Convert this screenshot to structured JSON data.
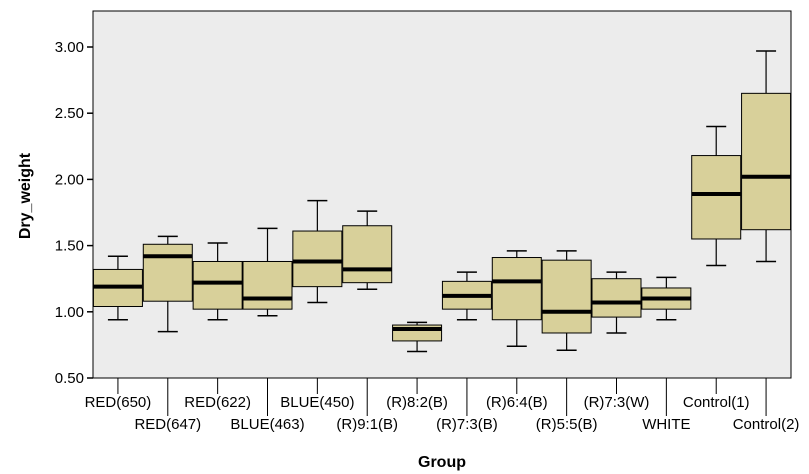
{
  "chart_data": {
    "type": "boxplot",
    "xlabel": "Group",
    "ylabel": "Dry_weight",
    "ylim": [
      0.5,
      3.25
    ],
    "yticks": [
      "0.50",
      "1.00",
      "1.50",
      "2.00",
      "2.50",
      "3.00"
    ],
    "ytick_values": [
      0.5,
      1.0,
      1.5,
      2.0,
      2.5,
      3.0
    ],
    "categories": [
      "RED(650)",
      "RED(647)",
      "RED(622)",
      "BLUE(463)",
      "BLUE(450)",
      "(R)9:1(B)",
      "(R)8:2(B)",
      "(R)7:3(B)",
      "(R)6:4(B)",
      "(R)5:5(B)",
      "(R)7:3(W)",
      "WHITE",
      "Control(1)",
      "Control(2)"
    ],
    "boxes": [
      {
        "min": 0.94,
        "q1": 1.04,
        "median": 1.19,
        "q3": 1.32,
        "max": 1.42
      },
      {
        "min": 0.85,
        "q1": 1.08,
        "median": 1.42,
        "q3": 1.51,
        "max": 1.57
      },
      {
        "min": 0.94,
        "q1": 1.02,
        "median": 1.22,
        "q3": 1.38,
        "max": 1.52
      },
      {
        "min": 0.97,
        "q1": 1.02,
        "median": 1.1,
        "q3": 1.38,
        "max": 1.63
      },
      {
        "min": 1.07,
        "q1": 1.19,
        "median": 1.38,
        "q3": 1.61,
        "max": 1.84
      },
      {
        "min": 1.17,
        "q1": 1.22,
        "median": 1.32,
        "q3": 1.65,
        "max": 1.76
      },
      {
        "min": 0.7,
        "q1": 0.78,
        "median": 0.87,
        "q3": 0.9,
        "max": 0.92
      },
      {
        "min": 0.94,
        "q1": 1.02,
        "median": 1.12,
        "q3": 1.23,
        "max": 1.3
      },
      {
        "min": 0.74,
        "q1": 0.94,
        "median": 1.23,
        "q3": 1.41,
        "max": 1.46
      },
      {
        "min": 0.71,
        "q1": 0.84,
        "median": 1.0,
        "q3": 1.39,
        "max": 1.46
      },
      {
        "min": 0.84,
        "q1": 0.96,
        "median": 1.07,
        "q3": 1.25,
        "max": 1.3
      },
      {
        "min": 0.94,
        "q1": 1.02,
        "median": 1.1,
        "q3": 1.18,
        "max": 1.26
      },
      {
        "min": 1.35,
        "q1": 1.55,
        "median": 1.89,
        "q3": 2.18,
        "max": 2.4
      },
      {
        "min": 1.38,
        "q1": 1.62,
        "median": 2.02,
        "q3": 2.65,
        "max": 2.97
      }
    ],
    "box_color": "#d8d09a",
    "plot_background": "#ececec",
    "grid": false,
    "legend": "none"
  }
}
